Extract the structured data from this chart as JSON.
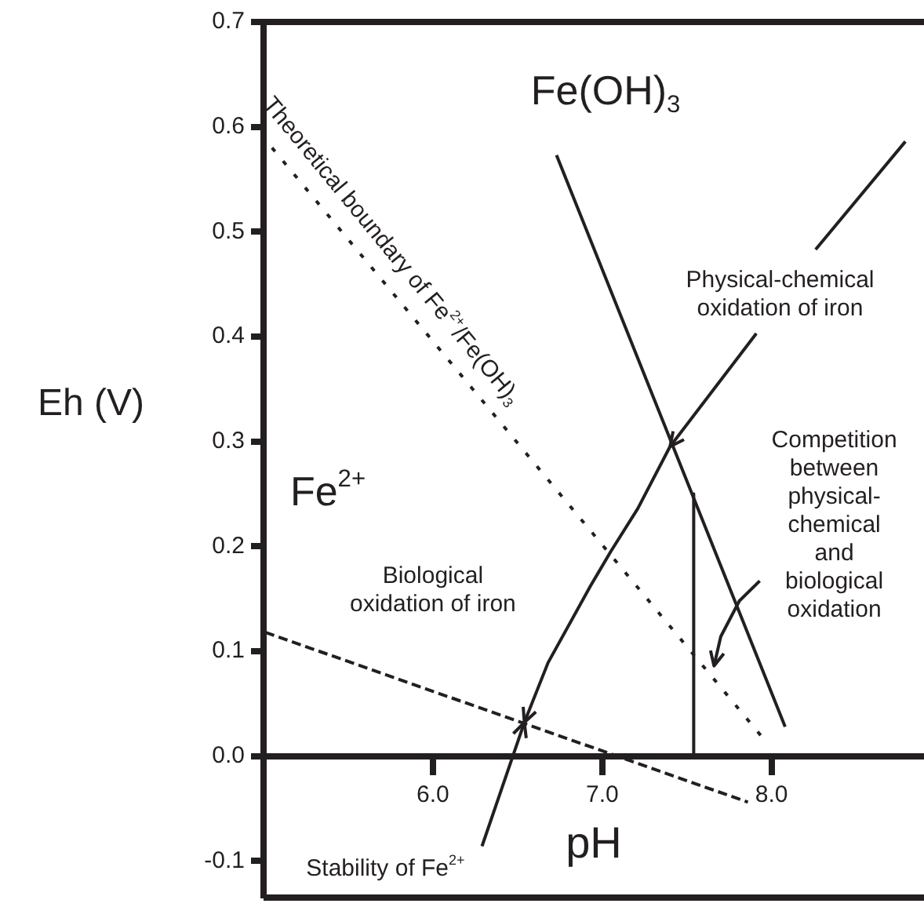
{
  "chart_data": {
    "type": "line",
    "xlabel": "pH",
    "ylabel": "Eh (V)",
    "xlim": [
      5.0,
      8.9
    ],
    "ylim": [
      -0.135,
      0.7
    ],
    "xticks": [
      {
        "value": 6,
        "label": "6.0"
      },
      {
        "value": 7,
        "label": "7.0"
      },
      {
        "value": 8,
        "label": "8.0"
      }
    ],
    "yticks": [
      {
        "value": -0.1,
        "label": "-0.1"
      },
      {
        "value": 0,
        "label": "0.0"
      },
      {
        "value": 0.1,
        "label": "0.1"
      },
      {
        "value": 0.2,
        "label": "0.2"
      },
      {
        "value": 0.3,
        "label": "0.3"
      },
      {
        "value": 0.4,
        "label": "0.4"
      },
      {
        "value": 0.5,
        "label": "0.5"
      },
      {
        "value": 0.6,
        "label": "0.6"
      },
      {
        "value": 0.7,
        "label": "0.7"
      }
    ],
    "grid": false,
    "legend": false,
    "series": [
      {
        "color": "#231f20",
        "line_style": "dotted",
        "x": [
          5.05,
          7.96
        ],
        "values": [
          0.58,
          0.015
        ]
      },
      {
        "color": "#231f20",
        "line_style": "dashed",
        "x": [
          5.01,
          7.86
        ],
        "values": [
          0.118,
          -0.044
        ]
      },
      {
        "color": "#231f20",
        "line_style": "solid",
        "x": [
          6.73,
          8.08
        ],
        "values": [
          0.573,
          0.028
        ]
      },
      {
        "color": "#231f20",
        "line_style": "solid",
        "x": [
          7.54,
          7.54
        ],
        "values": [
          0.25,
          0.0
        ]
      }
    ],
    "annotations": [
      "Fe(OH)$_{3}$",
      "Fe$^{2+}$",
      "Theoretical boundary of Fe$^{2+}$/Fe(OH)$_{3}$",
      {
        "text": "Physical-chemical\noxidation of iron",
        "x": 7.4,
        "y": 0.295
      },
      {
        "text": "Competition\nbetween\nphysical-\nchemical\nand\nbiological\noxidation",
        "x": 7.66,
        "y": 0.086
      },
      "Biological\noxidation of iron",
      {
        "text": "Stability of Fe$^{2+}$",
        "x": 6.54,
        "y": 0.032
      }
    ]
  }
}
